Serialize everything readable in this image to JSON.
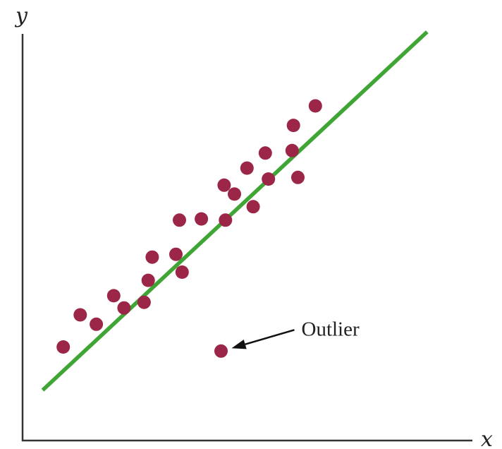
{
  "chart_data": {
    "type": "scatter",
    "title": "",
    "xlabel": "x",
    "ylabel": "y",
    "xlim": [
      0,
      100
    ],
    "ylim": [
      0,
      100
    ],
    "grid": false,
    "colors": {
      "points": "#9b2647",
      "trend_line": "#3fa535",
      "axes": "#333333",
      "annotation_arrow": "#111111"
    },
    "series": [
      {
        "points": [
          {
            "x": 9.1,
            "y": 23.0
          },
          {
            "x": 12.9,
            "y": 30.9
          },
          {
            "x": 16.5,
            "y": 28.6
          },
          {
            "x": 20.4,
            "y": 35.6
          },
          {
            "x": 22.7,
            "y": 32.6
          },
          {
            "x": 27.2,
            "y": 34.0
          },
          {
            "x": 28.1,
            "y": 39.4
          },
          {
            "x": 29.0,
            "y": 45.1
          },
          {
            "x": 34.3,
            "y": 45.8
          },
          {
            "x": 35.7,
            "y": 41.4
          },
          {
            "x": 35.1,
            "y": 54.2
          },
          {
            "x": 40.0,
            "y": 54.5
          },
          {
            "x": 45.4,
            "y": 54.2
          },
          {
            "x": 45.1,
            "y": 62.8
          },
          {
            "x": 47.4,
            "y": 60.6
          },
          {
            "x": 50.2,
            "y": 67.0
          },
          {
            "x": 51.6,
            "y": 57.5
          },
          {
            "x": 55.0,
            "y": 64.3
          },
          {
            "x": 54.3,
            "y": 70.7
          },
          {
            "x": 60.3,
            "y": 71.3
          },
          {
            "x": 61.6,
            "y": 64.7
          },
          {
            "x": 60.6,
            "y": 77.5
          },
          {
            "x": 65.5,
            "y": 82.3
          }
        ]
      }
    ],
    "trend_line": {
      "x1": 4.5,
      "y1": 12.4,
      "x2": 90.5,
      "y2": 100.5
    },
    "annotations": [
      {
        "text": "Outlier",
        "point": {
          "x": 44.4,
          "y": 22.0
        }
      }
    ]
  }
}
